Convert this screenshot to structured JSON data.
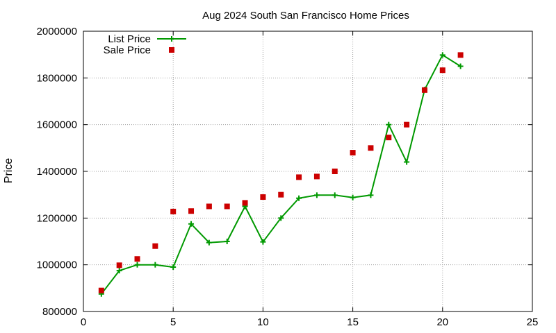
{
  "chart_data": {
    "type": "line",
    "title": "Aug 2024 South San Francisco Home Prices",
    "xlabel": "",
    "ylabel": "Price",
    "xlim": [
      0,
      25
    ],
    "ylim": [
      800000,
      2000000
    ],
    "x_ticks": [
      "0",
      "5",
      "10",
      "15",
      "20",
      "25"
    ],
    "y_ticks": [
      "800000",
      "1000000",
      "1200000",
      "1400000",
      "1600000",
      "1800000",
      "2000000"
    ],
    "grid": true,
    "legend_position": "top-left",
    "series": [
      {
        "name": "List Price",
        "style": "line-with-plus-markers",
        "color": "#009900",
        "x": [
          1,
          2,
          3,
          4,
          5,
          6,
          7,
          8,
          9,
          10,
          11,
          12,
          13,
          14,
          15,
          16,
          17,
          18,
          19,
          20,
          21
        ],
        "values": [
          875000,
          975000,
          1000000,
          1000000,
          990000,
          1175000,
          1095000,
          1100000,
          1250000,
          1098000,
          1200000,
          1285000,
          1298000,
          1298000,
          1288000,
          1298000,
          1600000,
          1440000,
          1750000,
          1898000,
          1850000
        ]
      },
      {
        "name": "Sale Price",
        "style": "square-markers",
        "color": "#cc0000",
        "x": [
          1,
          2,
          3,
          4,
          5,
          6,
          7,
          8,
          9,
          10,
          11,
          12,
          13,
          14,
          15,
          16,
          17,
          18,
          19,
          20,
          21
        ],
        "values": [
          890000,
          998000,
          1025000,
          1080000,
          1228000,
          1230000,
          1250000,
          1250000,
          1265000,
          1290000,
          1300000,
          1375000,
          1378000,
          1400000,
          1480000,
          1500000,
          1545000,
          1600000,
          1748000,
          1833000,
          1898000
        ]
      }
    ]
  }
}
